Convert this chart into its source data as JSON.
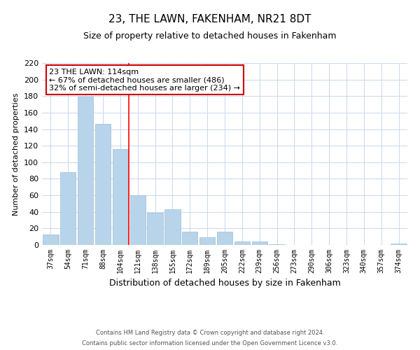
{
  "title": "23, THE LAWN, FAKENHAM, NR21 8DT",
  "subtitle": "Size of property relative to detached houses in Fakenham",
  "xlabel": "Distribution of detached houses by size in Fakenham",
  "ylabel": "Number of detached properties",
  "bar_labels": [
    "37sqm",
    "54sqm",
    "71sqm",
    "88sqm",
    "104sqm",
    "121sqm",
    "138sqm",
    "155sqm",
    "172sqm",
    "189sqm",
    "205sqm",
    "222sqm",
    "239sqm",
    "256sqm",
    "273sqm",
    "290sqm",
    "306sqm",
    "323sqm",
    "340sqm",
    "357sqm",
    "374sqm"
  ],
  "bar_values": [
    13,
    88,
    179,
    146,
    116,
    60,
    39,
    43,
    16,
    9,
    16,
    4,
    4,
    1,
    0,
    0,
    0,
    0,
    0,
    0,
    2
  ],
  "bar_color": "#b8d4ea",
  "bar_edge_color": "#9bbdd8",
  "property_line_x": 4.5,
  "annotation_title": "23 THE LAWN: 114sqm",
  "annotation_line1": "← 67% of detached houses are smaller (486)",
  "annotation_line2": "32% of semi-detached houses are larger (234) →",
  "ylim": [
    0,
    220
  ],
  "yticks": [
    0,
    20,
    40,
    60,
    80,
    100,
    120,
    140,
    160,
    180,
    200,
    220
  ],
  "footer_line1": "Contains HM Land Registry data © Crown copyright and database right 2024.",
  "footer_line2": "Contains public sector information licensed under the Open Government Licence v3.0.",
  "bg_color": "#ffffff",
  "grid_color": "#c8d8ec",
  "annotation_box_color": "#cc0000",
  "title_fontsize": 11,
  "subtitle_fontsize": 9,
  "xlabel_fontsize": 9,
  "ylabel_fontsize": 8,
  "tick_fontsize": 7,
  "annot_fontsize": 8,
  "footer_fontsize": 6
}
